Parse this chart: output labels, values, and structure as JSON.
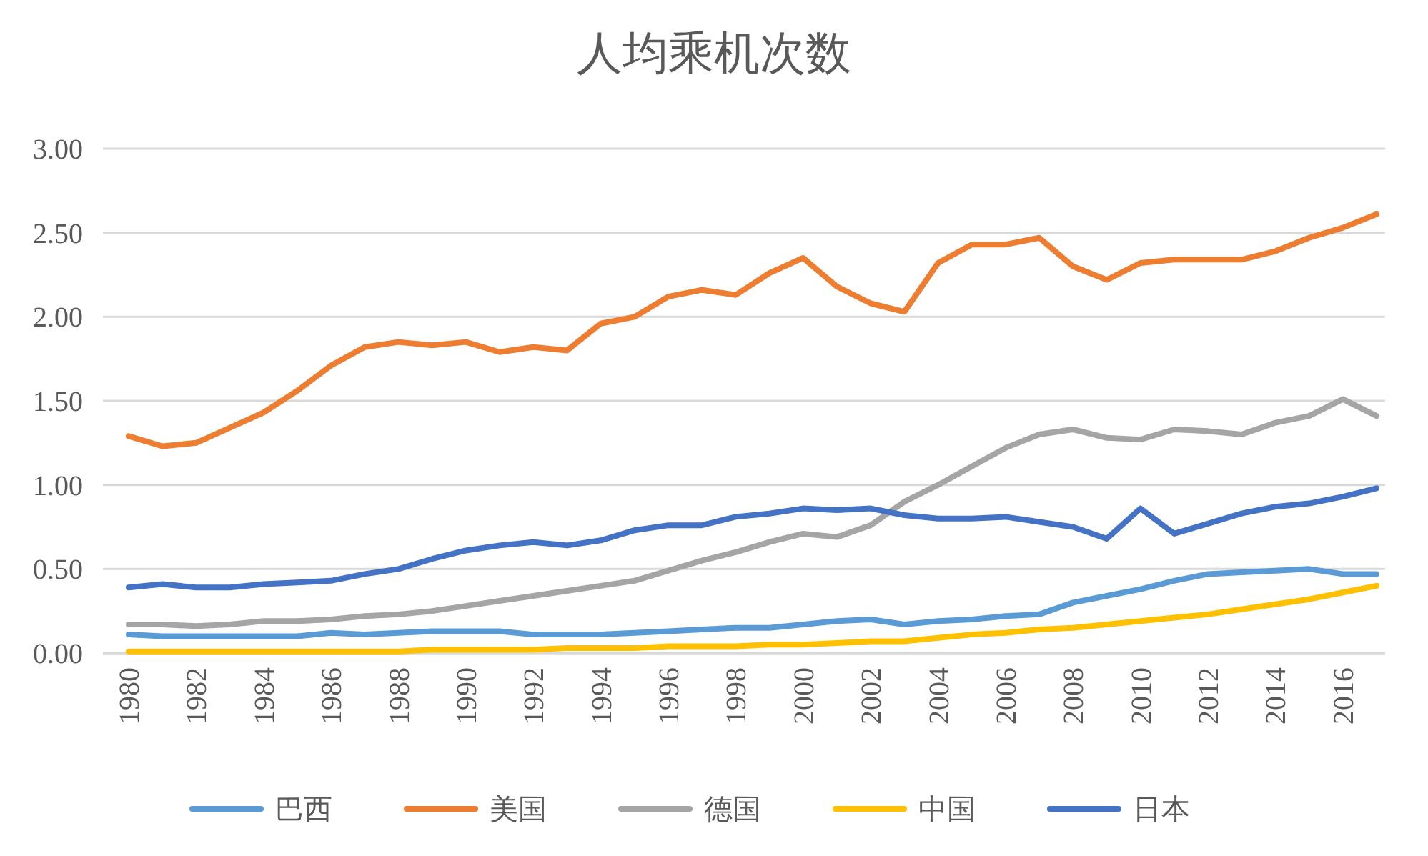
{
  "chart_data": {
    "type": "line",
    "title": "人均乘机次数",
    "categories": [
      "1980",
      null,
      "1982",
      null,
      "1984",
      null,
      "1986",
      null,
      "1988",
      null,
      "1990",
      null,
      "1992",
      null,
      "1994",
      null,
      "1996",
      null,
      "1998",
      null,
      "2000",
      null,
      "2002",
      null,
      "2004",
      null,
      "2006",
      null,
      "2008",
      null,
      "2010",
      null,
      "2012",
      null,
      "2014",
      null,
      "2016",
      null
    ],
    "series": [
      {
        "name": "巴西",
        "color": "#5b9bd5",
        "values": [
          0.11,
          0.1,
          0.1,
          0.1,
          0.1,
          0.1,
          0.12,
          0.11,
          0.12,
          0.13,
          0.13,
          0.13,
          0.11,
          0.11,
          0.11,
          0.12,
          0.13,
          0.14,
          0.15,
          0.15,
          0.17,
          0.19,
          0.2,
          0.17,
          0.19,
          0.2,
          0.22,
          0.23,
          0.3,
          0.34,
          0.38,
          0.43,
          0.47,
          0.48,
          0.49,
          0.5,
          0.47,
          0.47
        ]
      },
      {
        "name": "美国",
        "color": "#ed7d31",
        "values": [
          1.29,
          1.23,
          1.25,
          1.34,
          1.43,
          1.56,
          1.71,
          1.82,
          1.85,
          1.83,
          1.85,
          1.79,
          1.82,
          1.8,
          1.96,
          2.0,
          2.12,
          2.16,
          2.13,
          2.26,
          2.35,
          2.18,
          2.08,
          2.03,
          2.32,
          2.43,
          2.43,
          2.47,
          2.3,
          2.22,
          2.32,
          2.34,
          2.34,
          2.34,
          2.39,
          2.47,
          2.53,
          2.61
        ]
      },
      {
        "name": "德国",
        "color": "#a5a5a5",
        "values": [
          0.17,
          0.17,
          0.16,
          0.17,
          0.19,
          0.19,
          0.2,
          0.22,
          0.23,
          0.25,
          0.28,
          0.31,
          0.34,
          0.37,
          0.4,
          0.43,
          0.49,
          0.55,
          0.6,
          0.66,
          0.71,
          0.69,
          0.76,
          0.9,
          1.0,
          1.11,
          1.22,
          1.3,
          1.33,
          1.28,
          1.27,
          1.33,
          1.32,
          1.3,
          1.37,
          1.41,
          1.51,
          1.41
        ]
      },
      {
        "name": "中国",
        "color": "#ffc000",
        "values": [
          0.01,
          0.01,
          0.01,
          0.01,
          0.01,
          0.01,
          0.01,
          0.01,
          0.01,
          0.02,
          0.02,
          0.02,
          0.02,
          0.03,
          0.03,
          0.03,
          0.04,
          0.04,
          0.04,
          0.05,
          0.05,
          0.06,
          0.07,
          0.07,
          0.09,
          0.11,
          0.12,
          0.14,
          0.15,
          0.17,
          0.19,
          0.21,
          0.23,
          0.26,
          0.29,
          0.32,
          0.36,
          0.4
        ]
      },
      {
        "name": "日本",
        "color": "#4472c4",
        "values": [
          0.39,
          0.41,
          0.39,
          0.39,
          0.41,
          0.42,
          0.43,
          0.47,
          0.5,
          0.56,
          0.61,
          0.64,
          0.66,
          0.64,
          0.67,
          0.73,
          0.76,
          0.76,
          0.81,
          0.83,
          0.86,
          0.85,
          0.86,
          0.82,
          0.8,
          0.8,
          0.81,
          0.78,
          0.75,
          0.68,
          0.86,
          0.71,
          0.77,
          0.83,
          0.87,
          0.89,
          0.93,
          0.98
        ]
      }
    ],
    "ylim": [
      0,
      3
    ],
    "yticks": [
      {
        "value": 0,
        "label": "0.00"
      },
      {
        "value": 0.5,
        "label": "0.50"
      },
      {
        "value": 1,
        "label": "1.00"
      },
      {
        "value": 1.5,
        "label": "1.50"
      },
      {
        "value": 2,
        "label": "2.00"
      },
      {
        "value": 2.5,
        "label": "2.50"
      },
      {
        "value": 3,
        "label": "3.00"
      }
    ],
    "grid": "y",
    "legend": "bottom",
    "line_style": "solid"
  }
}
